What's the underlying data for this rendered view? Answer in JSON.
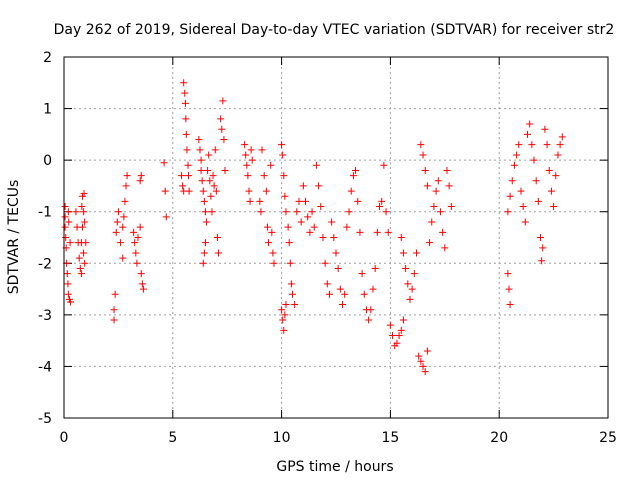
{
  "chart_data": {
    "type": "scatter",
    "title": "Day 262 of 2019, Sidereal Day-to-day VTEC variation (SDTVAR) for receiver str2",
    "xlabel": "GPS time / hours",
    "ylabel": "SDTVAR / TECUs",
    "xlim": [
      0,
      25
    ],
    "ylim": [
      -5,
      2
    ],
    "xticks": [
      0,
      5,
      10,
      15,
      20,
      25
    ],
    "yticks": [
      -5,
      -4,
      -3,
      -2,
      -1,
      0,
      1,
      2
    ],
    "grid": true,
    "marker": "+",
    "colors": {
      "points": "#ff0000",
      "grid": "#a0a0a0",
      "axis": "#000000"
    },
    "series": [
      {
        "name": "SDTVAR",
        "points": [
          [
            0.05,
            -0.9
          ],
          [
            0.05,
            -1.1
          ],
          [
            0.05,
            -1.3
          ],
          [
            0.08,
            -1.5
          ],
          [
            0.1,
            -1.7
          ],
          [
            0.12,
            -2.0
          ],
          [
            0.15,
            -2.2
          ],
          [
            0.18,
            -2.4
          ],
          [
            0.2,
            -2.6
          ],
          [
            0.25,
            -2.7
          ],
          [
            0.3,
            -2.75
          ],
          [
            0.2,
            -1.0
          ],
          [
            0.22,
            -1.2
          ],
          [
            0.28,
            -1.6
          ],
          [
            0.55,
            -1.0
          ],
          [
            0.6,
            -1.3
          ],
          [
            0.65,
            -1.6
          ],
          [
            0.7,
            -1.9
          ],
          [
            0.75,
            -2.1
          ],
          [
            0.8,
            -2.2
          ],
          [
            0.85,
            -0.7
          ],
          [
            0.9,
            -1.0
          ],
          [
            0.85,
            -1.3
          ],
          [
            0.8,
            -1.6
          ],
          [
            0.9,
            -1.8
          ],
          [
            0.95,
            -2.0
          ],
          [
            1.0,
            -1.6
          ],
          [
            0.95,
            -1.2
          ],
          [
            0.82,
            -0.9
          ],
          [
            0.92,
            -0.65
          ],
          [
            2.3,
            -2.9
          ],
          [
            2.3,
            -3.1
          ],
          [
            2.35,
            -2.6
          ],
          [
            2.4,
            -1.4
          ],
          [
            2.45,
            -1.2
          ],
          [
            2.5,
            -1.0
          ],
          [
            2.7,
            -1.3
          ],
          [
            2.75,
            -1.1
          ],
          [
            2.8,
            -0.8
          ],
          [
            2.85,
            -0.5
          ],
          [
            2.9,
            -0.3
          ],
          [
            2.6,
            -1.6
          ],
          [
            2.7,
            -1.9
          ],
          [
            3.2,
            -1.4
          ],
          [
            3.25,
            -1.6
          ],
          [
            3.3,
            -1.8
          ],
          [
            3.35,
            -2.0
          ],
          [
            3.4,
            -1.5
          ],
          [
            3.5,
            -1.3
          ],
          [
            3.5,
            -0.4
          ],
          [
            3.55,
            -2.2
          ],
          [
            3.6,
            -2.4
          ],
          [
            3.65,
            -2.5
          ],
          [
            3.55,
            -0.3
          ],
          [
            4.6,
            -0.05
          ],
          [
            4.65,
            -0.6
          ],
          [
            4.7,
            -1.1
          ],
          [
            5.4,
            -0.3
          ],
          [
            5.45,
            -0.5
          ],
          [
            5.5,
            -0.6
          ],
          [
            5.5,
            1.5
          ],
          [
            5.55,
            1.3
          ],
          [
            5.58,
            1.1
          ],
          [
            5.6,
            0.8
          ],
          [
            5.62,
            0.5
          ],
          [
            5.65,
            0.2
          ],
          [
            5.7,
            -0.1
          ],
          [
            5.72,
            -0.3
          ],
          [
            5.75,
            -0.6
          ],
          [
            6.2,
            0.4
          ],
          [
            6.25,
            0.2
          ],
          [
            6.3,
            0.0
          ],
          [
            6.3,
            -0.2
          ],
          [
            6.35,
            -0.4
          ],
          [
            6.4,
            -0.6
          ],
          [
            6.45,
            -0.8
          ],
          [
            6.5,
            -1.0
          ],
          [
            6.55,
            -1.2
          ],
          [
            6.5,
            -1.6
          ],
          [
            6.45,
            -1.8
          ],
          [
            6.4,
            -2.0
          ],
          [
            6.6,
            -0.2
          ],
          [
            6.65,
            0.1
          ],
          [
            6.7,
            -0.4
          ],
          [
            6.75,
            -0.7
          ],
          [
            6.8,
            -1.0
          ],
          [
            6.85,
            -0.3
          ],
          [
            6.9,
            -0.5
          ],
          [
            6.95,
            0.2
          ],
          [
            7.0,
            -0.6
          ],
          [
            7.05,
            -1.5
          ],
          [
            7.1,
            -1.8
          ],
          [
            7.2,
            0.8
          ],
          [
            7.25,
            0.6
          ],
          [
            7.3,
            1.15
          ],
          [
            7.35,
            0.4
          ],
          [
            7.4,
            -0.2
          ],
          [
            8.3,
            0.3
          ],
          [
            8.35,
            0.1
          ],
          [
            8.4,
            -0.1
          ],
          [
            8.45,
            -0.3
          ],
          [
            8.5,
            -0.6
          ],
          [
            8.55,
            -0.8
          ],
          [
            8.6,
            0.2
          ],
          [
            8.65,
            0.0
          ],
          [
            9.0,
            -0.8
          ],
          [
            9.05,
            -1.0
          ],
          [
            9.1,
            0.2
          ],
          [
            9.2,
            -0.3
          ],
          [
            9.3,
            -0.6
          ],
          [
            9.35,
            -1.3
          ],
          [
            9.4,
            -1.6
          ],
          [
            9.5,
            -0.1
          ],
          [
            9.55,
            -1.4
          ],
          [
            9.6,
            -1.8
          ],
          [
            9.65,
            -2.0
          ],
          [
            10.0,
            0.3
          ],
          [
            10.05,
            0.1
          ],
          [
            10.1,
            -0.3
          ],
          [
            10.15,
            -0.7
          ],
          [
            10.2,
            -1.0
          ],
          [
            10.0,
            -2.9
          ],
          [
            10.05,
            -3.1
          ],
          [
            10.1,
            -3.3
          ],
          [
            10.15,
            -3.0
          ],
          [
            10.2,
            -2.8
          ],
          [
            10.3,
            -1.3
          ],
          [
            10.35,
            -1.6
          ],
          [
            10.4,
            -2.0
          ],
          [
            10.45,
            -2.4
          ],
          [
            10.5,
            -2.6
          ],
          [
            10.6,
            -2.8
          ],
          [
            10.7,
            -1.0
          ],
          [
            10.8,
            -0.8
          ],
          [
            10.9,
            -1.2
          ],
          [
            11.0,
            -0.5
          ],
          [
            11.1,
            -0.8
          ],
          [
            11.2,
            -1.1
          ],
          [
            11.3,
            -1.4
          ],
          [
            11.4,
            -1.0
          ],
          [
            11.5,
            -1.3
          ],
          [
            11.6,
            -0.1
          ],
          [
            11.7,
            -0.5
          ],
          [
            11.8,
            -0.9
          ],
          [
            11.9,
            -1.5
          ],
          [
            12.0,
            -2.0
          ],
          [
            12.1,
            -2.4
          ],
          [
            12.2,
            -2.6
          ],
          [
            12.3,
            -1.2
          ],
          [
            12.4,
            -1.5
          ],
          [
            12.5,
            -1.8
          ],
          [
            12.6,
            -2.1
          ],
          [
            12.7,
            -2.5
          ],
          [
            12.8,
            -2.8
          ],
          [
            12.9,
            -2.6
          ],
          [
            13.0,
            -1.3
          ],
          [
            13.1,
            -1.0
          ],
          [
            13.2,
            -0.6
          ],
          [
            13.3,
            -0.3
          ],
          [
            13.4,
            -0.2
          ],
          [
            13.5,
            -0.8
          ],
          [
            13.6,
            -1.4
          ],
          [
            13.7,
            -2.2
          ],
          [
            13.8,
            -2.6
          ],
          [
            13.9,
            -2.9
          ],
          [
            14.0,
            -3.1
          ],
          [
            14.1,
            -2.9
          ],
          [
            14.2,
            -2.5
          ],
          [
            14.3,
            -2.1
          ],
          [
            14.4,
            -1.4
          ],
          [
            14.5,
            -0.9
          ],
          [
            14.6,
            -0.8
          ],
          [
            14.7,
            -0.1
          ],
          [
            14.8,
            -1.0
          ],
          [
            14.9,
            -1.4
          ],
          [
            15.0,
            -3.2
          ],
          [
            15.1,
            -3.4
          ],
          [
            15.2,
            -3.6
          ],
          [
            15.3,
            -3.55
          ],
          [
            15.4,
            -3.4
          ],
          [
            15.5,
            -3.3
          ],
          [
            15.6,
            -3.1
          ],
          [
            15.5,
            -1.5
          ],
          [
            15.6,
            -1.8
          ],
          [
            15.7,
            -2.1
          ],
          [
            15.8,
            -2.4
          ],
          [
            15.9,
            -2.7
          ],
          [
            16.0,
            -2.5
          ],
          [
            16.1,
            -2.2
          ],
          [
            16.2,
            -1.8
          ],
          [
            16.3,
            -3.8
          ],
          [
            16.4,
            -3.9
          ],
          [
            16.5,
            -4.0
          ],
          [
            16.6,
            -4.1
          ],
          [
            16.7,
            -3.7
          ],
          [
            16.8,
            -1.6
          ],
          [
            16.9,
            -1.2
          ],
          [
            17.0,
            -0.9
          ],
          [
            17.1,
            -0.6
          ],
          [
            17.2,
            -0.4
          ],
          [
            16.4,
            0.3
          ],
          [
            16.5,
            0.1
          ],
          [
            16.6,
            -0.2
          ],
          [
            16.7,
            -0.5
          ],
          [
            17.3,
            -1.0
          ],
          [
            17.4,
            -1.4
          ],
          [
            17.5,
            -1.7
          ],
          [
            17.6,
            -0.2
          ],
          [
            17.7,
            -0.5
          ],
          [
            17.8,
            -0.9
          ],
          [
            20.4,
            -2.2
          ],
          [
            20.45,
            -2.5
          ],
          [
            20.5,
            -2.8
          ],
          [
            20.4,
            -1.0
          ],
          [
            20.5,
            -0.7
          ],
          [
            20.6,
            -0.4
          ],
          [
            20.7,
            -0.1
          ],
          [
            20.8,
            0.1
          ],
          [
            20.9,
            0.3
          ],
          [
            21.0,
            -0.6
          ],
          [
            21.1,
            -0.9
          ],
          [
            21.2,
            -1.2
          ],
          [
            21.3,
            0.5
          ],
          [
            21.4,
            0.7
          ],
          [
            21.5,
            0.3
          ],
          [
            21.6,
            0.0
          ],
          [
            21.7,
            -0.4
          ],
          [
            21.8,
            -0.8
          ],
          [
            21.9,
            -1.5
          ],
          [
            22.0,
            -1.7
          ],
          [
            21.95,
            -1.95
          ],
          [
            22.1,
            0.6
          ],
          [
            22.2,
            0.3
          ],
          [
            22.3,
            -0.2
          ],
          [
            22.4,
            -0.6
          ],
          [
            22.5,
            -0.9
          ],
          [
            22.6,
            -0.3
          ],
          [
            22.7,
            0.1
          ],
          [
            22.8,
            0.3
          ],
          [
            22.9,
            0.45
          ]
        ]
      }
    ]
  }
}
